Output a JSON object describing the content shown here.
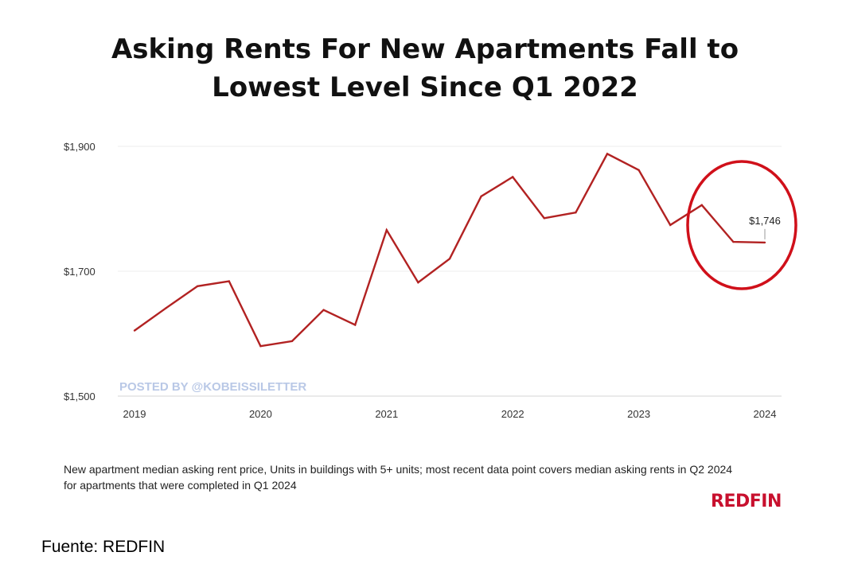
{
  "chart_data": {
    "type": "line",
    "title_lines": [
      "Asking Rents For New Apartments Fall to",
      "Lowest Level Since Q1 2022"
    ],
    "x_tick_labels": [
      "2019",
      "2020",
      "2021",
      "2022",
      "2023",
      "2024"
    ],
    "x_ticks": [
      2019,
      2020,
      2021,
      2022,
      2023,
      2024
    ],
    "y_tick_labels": [
      "$1,500",
      "$1,700",
      "$1,900"
    ],
    "y_ticks": [
      1500,
      1700,
      1900
    ],
    "ylim": [
      1500,
      1900
    ],
    "xlim": [
      2019,
      2024
    ],
    "grid": true,
    "color": "#b22222",
    "series": [
      {
        "x": [
          2019.0,
          2019.25,
          2019.5,
          2019.75,
          2020.0,
          2020.25,
          2020.5,
          2020.75,
          2021.0,
          2021.25,
          2021.5,
          2021.75,
          2022.0,
          2022.25,
          2022.5,
          2022.75,
          2023.0,
          2023.25,
          2023.5,
          2023.75,
          2024.0
        ],
        "values": [
          1605,
          1641,
          1676,
          1684,
          1580,
          1588,
          1638,
          1614,
          1766,
          1682,
          1720,
          1820,
          1851,
          1785,
          1794,
          1888,
          1862,
          1774,
          1806,
          1747,
          1746
        ]
      }
    ],
    "annotation": {
      "label": "$1,746",
      "x": 2024.0,
      "value": 1746,
      "circle_color": "#d0101a"
    },
    "watermark": "POSTED BY @KOBEISSILETTER"
  },
  "caption": "New apartment median asking rent price, Units in buildings with 5+ units; most recent data point covers median asking rents in Q2 2024 for apartments that were completed in Q1 2024",
  "brand": "REDFIN",
  "source": "Fuente: REDFIN"
}
